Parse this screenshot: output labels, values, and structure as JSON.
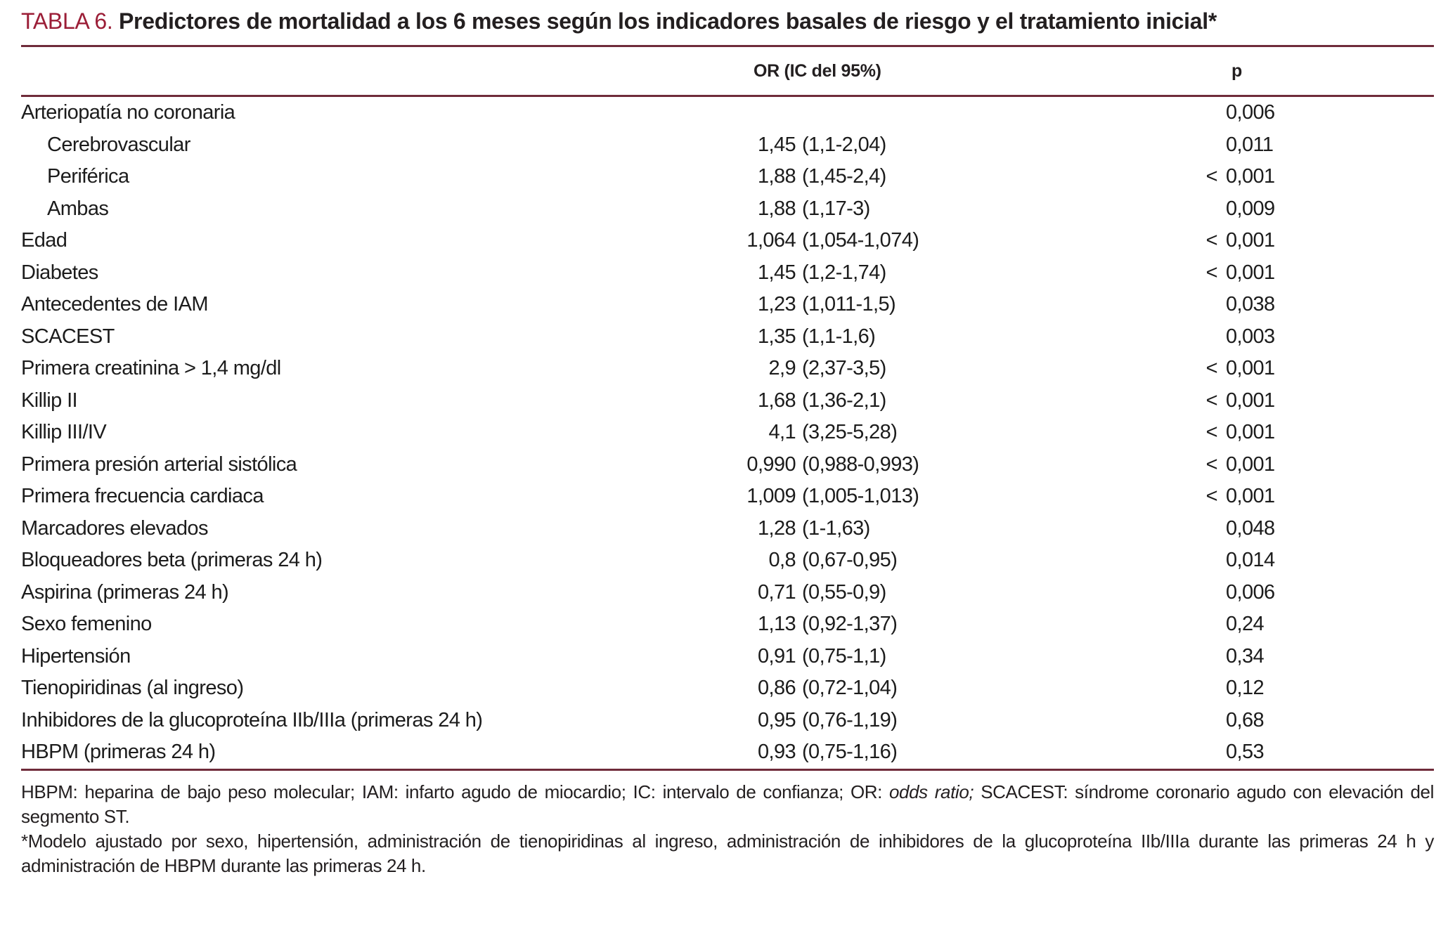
{
  "title": {
    "label": "TABLA 6.",
    "text": "Predictores de mortalidad a los 6 meses según los indicadores basales de riesgo y el tratamiento inicial*"
  },
  "table": {
    "headers": {
      "label": "",
      "or": "OR (IC del 95%)",
      "p": "p"
    },
    "rows": [
      {
        "label": "Arteriopatía no coronaria",
        "indent": false,
        "or": "",
        "ci": "",
        "p_prefix": "",
        "p": "0,006"
      },
      {
        "label": "Cerebrovascular",
        "indent": true,
        "or": "1,45",
        "ci": "(1,1-2,04)",
        "p_prefix": "",
        "p": "0,011"
      },
      {
        "label": "Periférica",
        "indent": true,
        "or": "1,88",
        "ci": "(1,45-2,4)",
        "p_prefix": "<",
        "p": "0,001"
      },
      {
        "label": "Ambas",
        "indent": true,
        "or": "1,88",
        "ci": "(1,17-3)",
        "p_prefix": "",
        "p": "0,009"
      },
      {
        "label": "Edad",
        "indent": false,
        "or": "1,064",
        "ci": "(1,054-1,074)",
        "p_prefix": "<",
        "p": "0,001"
      },
      {
        "label": "Diabetes",
        "indent": false,
        "or": "1,45",
        "ci": "(1,2-1,74)",
        "p_prefix": "<",
        "p": "0,001"
      },
      {
        "label": "Antecedentes de IAM",
        "indent": false,
        "or": "1,23",
        "ci": "(1,011-1,5)",
        "p_prefix": "",
        "p": "0,038"
      },
      {
        "label": "SCACEST",
        "indent": false,
        "or": "1,35",
        "ci": "(1,1-1,6)",
        "p_prefix": "",
        "p": "0,003"
      },
      {
        "label": "Primera creatinina > 1,4 mg/dl",
        "indent": false,
        "or": "2,9",
        "ci": "(2,37-3,5)",
        "p_prefix": "<",
        "p": "0,001"
      },
      {
        "label": "Killip II",
        "indent": false,
        "or": "1,68",
        "ci": "(1,36-2,1)",
        "p_prefix": "<",
        "p": "0,001"
      },
      {
        "label": "Killip III/IV",
        "indent": false,
        "or": "4,1",
        "ci": "(3,25-5,28)",
        "p_prefix": "<",
        "p": "0,001"
      },
      {
        "label": "Primera presión arterial sistólica",
        "indent": false,
        "or": "0,990",
        "ci": "(0,988-0,993)",
        "p_prefix": "<",
        "p": "0,001"
      },
      {
        "label": "Primera frecuencia cardiaca",
        "indent": false,
        "or": "1,009",
        "ci": "(1,005-1,013)",
        "p_prefix": "<",
        "p": "0,001"
      },
      {
        "label": "Marcadores elevados",
        "indent": false,
        "or": "1,28",
        "ci": "(1-1,63)",
        "p_prefix": "",
        "p": "0,048"
      },
      {
        "label": "Bloqueadores beta (primeras 24 h)",
        "indent": false,
        "or": "0,8",
        "ci": "(0,67-0,95)",
        "p_prefix": "",
        "p": "0,014"
      },
      {
        "label": "Aspirina (primeras 24 h)",
        "indent": false,
        "or": "0,71",
        "ci": "(0,55-0,9)",
        "p_prefix": "",
        "p": "0,006"
      },
      {
        "label": "Sexo femenino",
        "indent": false,
        "or": "1,13",
        "ci": "(0,92-1,37)",
        "p_prefix": "",
        "p": "0,24"
      },
      {
        "label": "Hipertensión",
        "indent": false,
        "or": "0,91",
        "ci": "(0,75-1,1)",
        "p_prefix": "",
        "p": "0,34"
      },
      {
        "label": "Tienopiridinas (al ingreso)",
        "indent": false,
        "or": "0,86",
        "ci": "(0,72-1,04)",
        "p_prefix": "",
        "p": "0,12"
      },
      {
        "label": "Inhibidores de la glucoproteína IIb/IIIa (primeras 24 h)",
        "indent": false,
        "or": "0,95",
        "ci": "(0,76-1,19)",
        "p_prefix": "",
        "p": "0,68"
      },
      {
        "label": "HBPM (primeras 24 h)",
        "indent": false,
        "or": "0,93",
        "ci": "(0,75-1,16)",
        "p_prefix": "",
        "p": "0,53"
      }
    ]
  },
  "footnotes": {
    "abbr_pre": "HBPM: heparina de bajo peso molecular; IAM: infarto agudo de miocardio; IC: intervalo de confianza; OR: ",
    "abbr_italic": "odds ratio;",
    "abbr_post": " SCACEST: síndrome coronario agudo con elevación del segmento ST.",
    "model": "*Modelo ajustado por sexo, hipertensión, administración de tienopiridinas al ingreso, administración de inhibidores de la glucoproteína IIb/IIIa durante las primeras 24 h y administración de HBPM durante las primeras 24 h."
  },
  "colors": {
    "accent_red": "#9b1e37",
    "rule_maroon": "#6f2b3a",
    "text": "#231f20"
  }
}
